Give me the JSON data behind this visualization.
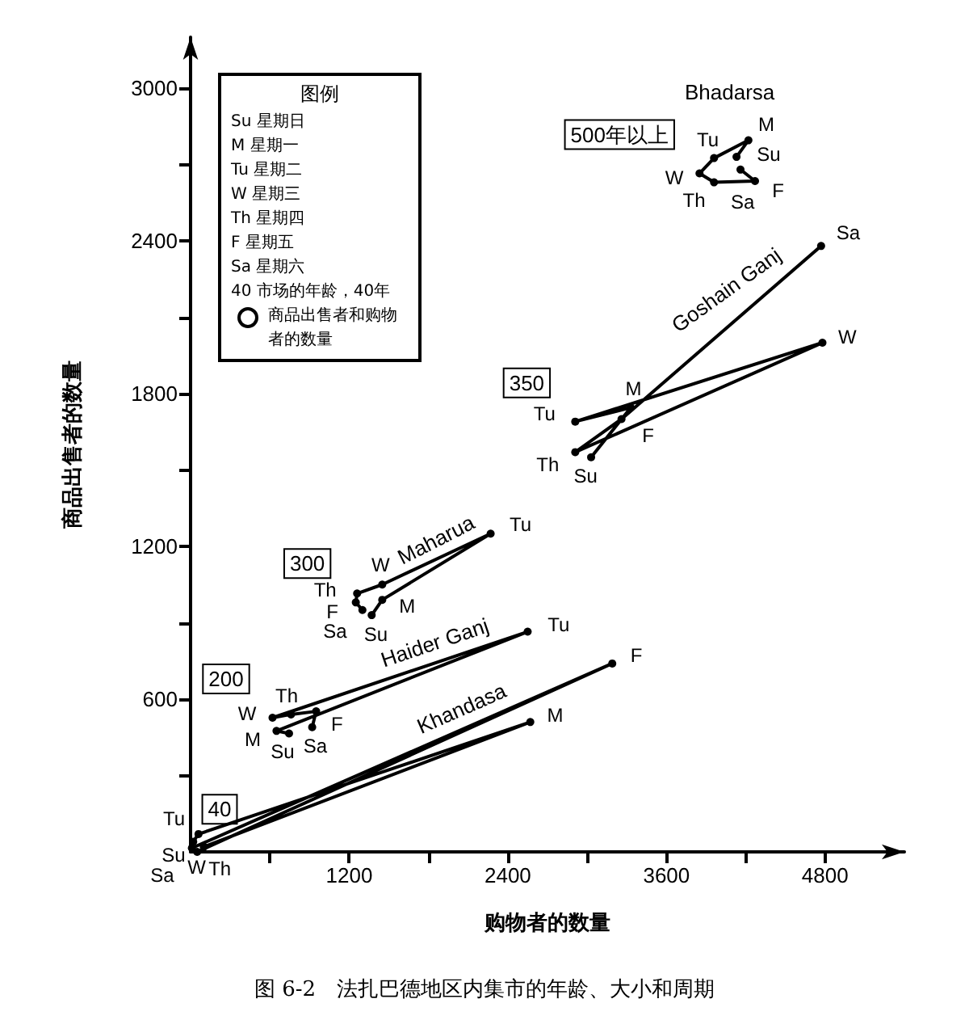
{
  "chart_data": {
    "type": "line",
    "title": "图 6-2　法扎巴德地区内集市的年龄、大小和周期",
    "xlabel": "购物者的数量",
    "ylabel": "商品出售者的数量",
    "legend_title": "图例",
    "xlim": [
      0,
      5400
    ],
    "ylim": [
      0,
      3200
    ],
    "xticks": [
      {
        "value": 600,
        "label": null
      },
      1200,
      {
        "value": 1800,
        "label": null
      },
      2400,
      {
        "value": 3000,
        "label": null
      },
      3600,
      {
        "value": 4200,
        "label": null
      },
      4800
    ],
    "yticks": [
      {
        "value": 300,
        "label": null
      },
      600,
      {
        "value": 900,
        "label": null
      },
      1200,
      {
        "value": 1500,
        "label": null
      },
      1800,
      {
        "value": 2100,
        "label": null
      },
      2400,
      {
        "value": 2700,
        "label": null
      },
      3000
    ],
    "grid": false,
    "legend": "top left",
    "marker": "circle",
    "line_style": "solid",
    "series": [
      {
        "name": "Khandasa",
        "color": "#000000",
        "x": [
          100,
          2570,
          60,
          20,
          10,
          3190,
          50
        ],
        "values": [
          20,
          510,
          70,
          40,
          15,
          740,
          0
        ]
      },
      {
        "name": "Haider Ganj",
        "color": "#000000",
        "x": [
          745,
          650,
          2550,
          620,
          760,
          950,
          920
        ],
        "values": [
          465,
          475,
          865,
          527,
          540,
          552,
          490
        ]
      },
      {
        "name": "Maharua",
        "color": "#000000",
        "x": [
          1370,
          1450,
          2270,
          1450,
          1260,
          1250,
          1300
        ],
        "values": [
          930,
          990,
          1250,
          1050,
          1015,
          980,
          950
        ]
      },
      {
        "name": "Goshain Ganj",
        "color": "#000000",
        "x": [
          3030,
          3330,
          2910,
          4780,
          2910,
          3260,
          4770
        ],
        "values": [
          1550,
          1745,
          1690,
          2000,
          1570,
          1700,
          2380
        ]
      },
      {
        "name": "Bhadarsa",
        "color": "#000000",
        "x": [
          4130,
          4220,
          3960,
          3850,
          3960,
          4270,
          4160
        ],
        "values": [
          2730,
          2795,
          2725,
          2665,
          2630,
          2635,
          2680
        ]
      }
    ],
    "annotations": [
      "Su 星期日",
      "M 星期一",
      "Tu 星期二",
      "W 星期三",
      "Th 星期四",
      "F 星期五",
      "Sa 星期六",
      "40 市场的年龄，40年",
      "商品出售者和购物者的数量",
      {
        "text": "Su",
        "x": 100,
        "y": 20
      },
      {
        "text": "M",
        "x": 2570,
        "y": 510
      },
      {
        "text": "Tu",
        "x": 60,
        "y": 70
      },
      {
        "text": "W",
        "x": 20,
        "y": 40
      },
      {
        "text": "Th",
        "x": 10,
        "y": 15
      },
      {
        "text": "F",
        "x": 3190,
        "y": 740
      },
      {
        "text": "Sa",
        "x": 50,
        "y": 0
      },
      {
        "text": "Su",
        "x": 745,
        "y": 465
      },
      {
        "text": "M",
        "x": 650,
        "y": 475
      },
      {
        "text": "Tu",
        "x": 2550,
        "y": 865
      },
      {
        "text": "W",
        "x": 620,
        "y": 527
      },
      {
        "text": "Th",
        "x": 760,
        "y": 540
      },
      {
        "text": "F",
        "x": 950,
        "y": 552
      },
      {
        "text": "Sa",
        "x": 920,
        "y": 490
      },
      {
        "text": "Su",
        "x": 1370,
        "y": 930
      },
      {
        "text": "M",
        "x": 1450,
        "y": 990
      },
      {
        "text": "Tu",
        "x": 2270,
        "y": 1250
      },
      {
        "text": "W",
        "x": 1450,
        "y": 1050
      },
      {
        "text": "Th",
        "x": 1260,
        "y": 1015
      },
      {
        "text": "F",
        "x": 1250,
        "y": 980
      },
      {
        "text": "Sa",
        "x": 1300,
        "y": 950
      },
      {
        "text": "Su",
        "x": 3030,
        "y": 1550
      },
      {
        "text": "M",
        "x": 3330,
        "y": 1745
      },
      {
        "text": "Tu",
        "x": 2910,
        "y": 1690
      },
      {
        "text": "W",
        "x": 4780,
        "y": 2000
      },
      {
        "text": "Th",
        "x": 2910,
        "y": 1570
      },
      {
        "text": "F",
        "x": 3260,
        "y": 1700
      },
      {
        "text": "Sa",
        "x": 4770,
        "y": 2380
      },
      {
        "text": "Su",
        "x": 4130,
        "y": 2730
      },
      {
        "text": "M",
        "x": 4220,
        "y": 2795
      },
      {
        "text": "Tu",
        "x": 3960,
        "y": 2725
      },
      {
        "text": "W",
        "x": 3850,
        "y": 2665
      },
      {
        "text": "Th",
        "x": 3960,
        "y": 2630
      },
      {
        "text": "F",
        "x": 4270,
        "y": 2635
      },
      {
        "text": "Sa",
        "x": 4160,
        "y": 2680
      },
      {
        "text": "40",
        "x": 10,
        "y": 15
      },
      {
        "text": "200",
        "x": 620,
        "y": 527
      },
      {
        "text": "300",
        "x": 1250,
        "y": 980
      },
      {
        "text": "350",
        "x": 2910,
        "y": 1690
      },
      {
        "text": "500年以上",
        "x": 3850,
        "y": 2665
      }
    ]
  }
}
